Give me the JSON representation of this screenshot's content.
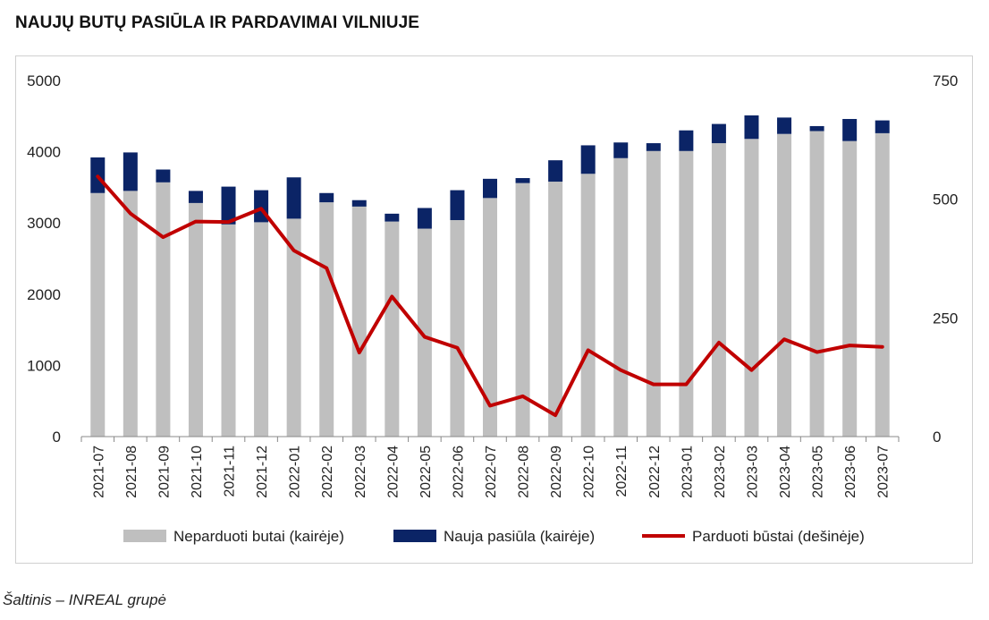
{
  "title": "NAUJŲ BUTŲ PASIŪLA IR PARDAVIMAI VILNIUJE",
  "source": "Šaltinis – INREAL grupė",
  "colors": {
    "unsold": "#bfbfbf",
    "new_supply": "#0b2466",
    "sold": "#c00000"
  },
  "chart_data": {
    "type": "bar",
    "categories": [
      "2021-07",
      "2021-08",
      "2021-09",
      "2021-10",
      "2021-11",
      "2021-12",
      "2022-01",
      "2022-02",
      "2022-03",
      "2022-04",
      "2022-05",
      "2022-06",
      "2022-07",
      "2022-08",
      "2022-09",
      "2022-10",
      "2022-11",
      "2022-12",
      "2023-01",
      "2023-02",
      "2023-03",
      "2023-04",
      "2023-05",
      "2023-06",
      "2023-07"
    ],
    "series": [
      {
        "name": "Neparduoti butai (kairėje)",
        "kind": "stacked-bar",
        "axis": "left",
        "values": [
          3420,
          3450,
          3570,
          3280,
          2980,
          3010,
          3060,
          3290,
          3230,
          3020,
          2920,
          3040,
          3350,
          3560,
          3580,
          3690,
          3910,
          4010,
          4010,
          4120,
          4180,
          4250,
          4290,
          4150,
          4260
        ]
      },
      {
        "name": "Nauja pasiūla (kairėje)",
        "kind": "stacked-bar",
        "axis": "left",
        "values": [
          500,
          540,
          180,
          170,
          530,
          450,
          580,
          130,
          90,
          110,
          290,
          420,
          270,
          70,
          300,
          400,
          220,
          110,
          290,
          270,
          330,
          230,
          70,
          310,
          180
        ]
      },
      {
        "name": "Parduoti būstai (dešinėje)",
        "kind": "line",
        "axis": "right",
        "values": [
          548,
          470,
          420,
          453,
          452,
          480,
          392,
          355,
          177,
          295,
          210,
          187,
          65,
          85,
          45,
          182,
          140,
          110,
          110,
          198,
          140,
          205,
          178,
          192,
          189
        ]
      }
    ],
    "left_axis": {
      "min": 0,
      "max": 5000,
      "ticks": [
        0,
        1000,
        2000,
        3000,
        4000,
        5000
      ]
    },
    "right_axis": {
      "min": 0,
      "max": 750,
      "ticks": [
        0,
        250,
        500,
        750
      ]
    },
    "grid": false,
    "legend_position": "bottom"
  }
}
